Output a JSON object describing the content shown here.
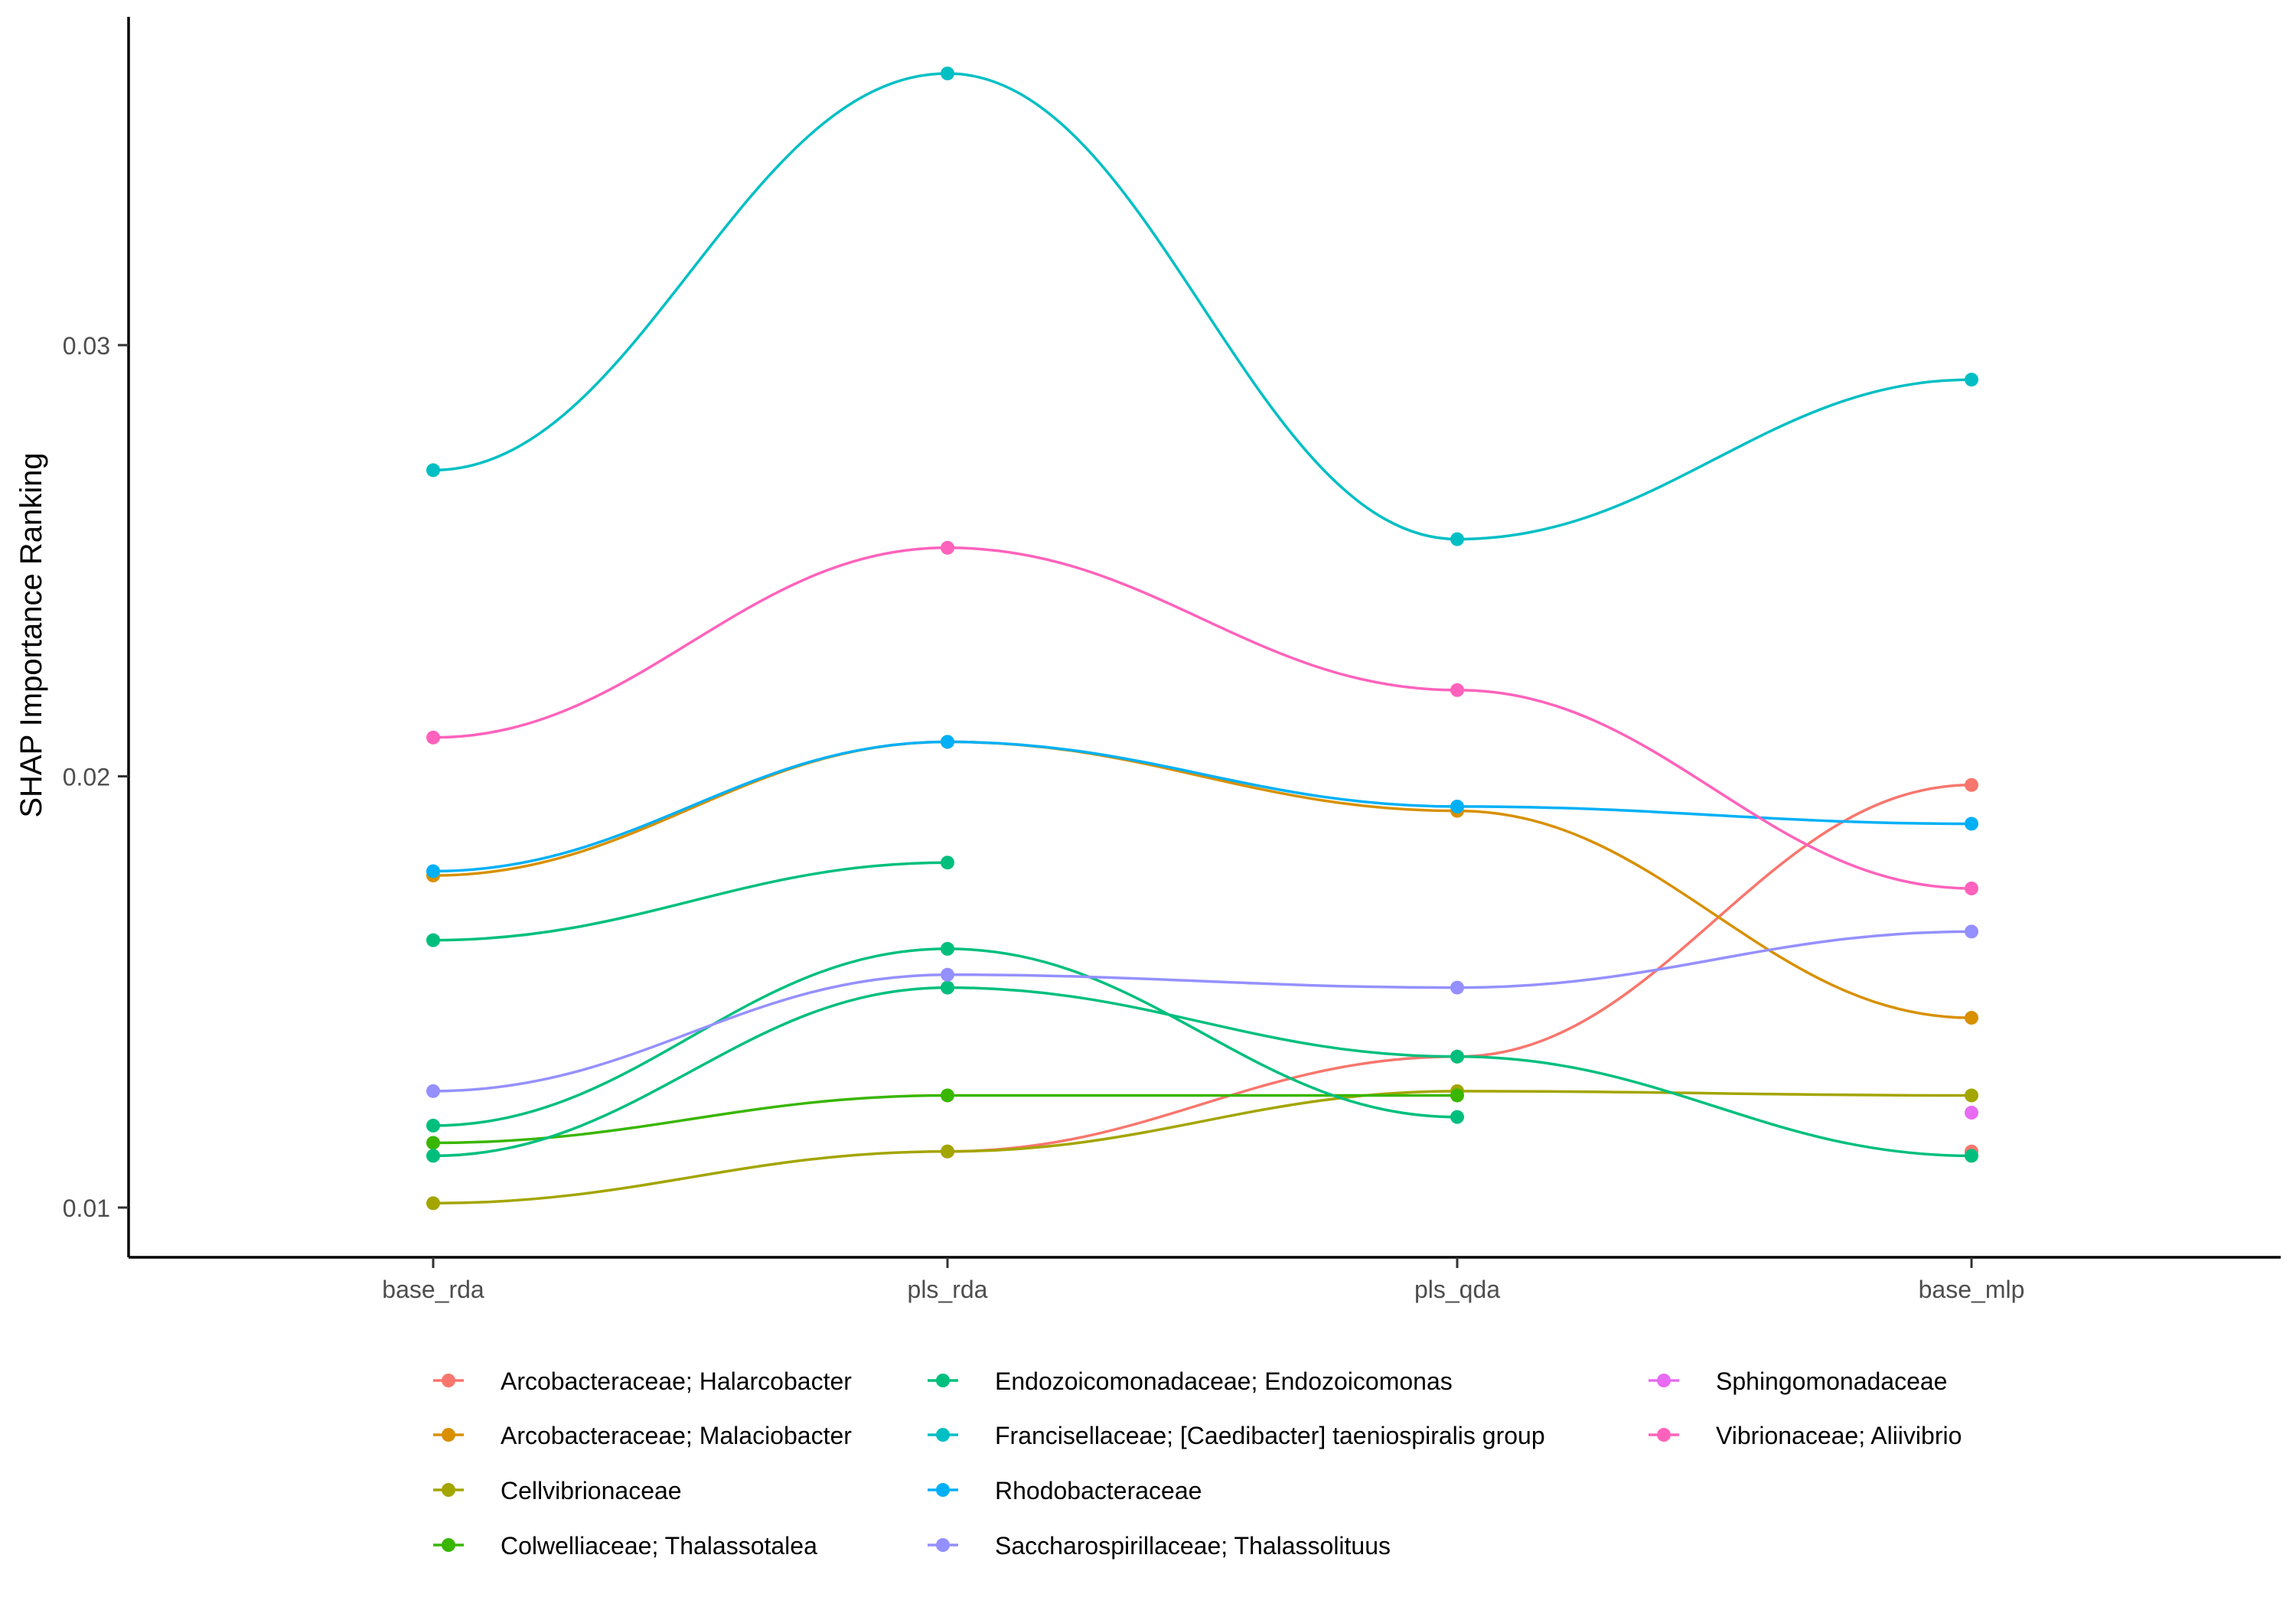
{
  "chart_data": {
    "type": "line",
    "title": "",
    "xlabel": "",
    "ylabel": "SHAP Importance Ranking",
    "categories": [
      "base_rda",
      "pls_rda",
      "pls_qda",
      "base_mlp"
    ],
    "yticks": [
      0.01,
      0.02,
      0.03
    ],
    "ytick_labels": [
      "0.01",
      "0.02",
      "0.03"
    ],
    "ylim": [
      0.0088,
      0.0375
    ],
    "grid": false,
    "legend_position": "bottom",
    "series": [
      {
        "name": "Arcobacteraceae; Halarcobacter",
        "color": "#F8766D",
        "values": [
          null,
          0.0113,
          0.0135,
          0.0198
        ],
        "extra_points": [
          {
            "x": "base_mlp",
            "y": 0.0113
          }
        ]
      },
      {
        "name": "Arcobacteraceae; Malaciobacter",
        "color": "#D89000",
        "values": [
          0.0177,
          0.0208,
          0.0192,
          0.0144
        ]
      },
      {
        "name": "Cellvibrionaceae",
        "color": "#A3A500",
        "values": [
          0.0101,
          0.0113,
          0.0127,
          0.0126
        ]
      },
      {
        "name": "Colwelliaceae; Thalassotalea",
        "color": "#39B600",
        "values": [
          0.0115,
          0.0126,
          0.0126,
          null
        ]
      },
      {
        "name": "Endozoicomonadaceae; Endozoicomonas",
        "color": "#00BF7D",
        "values": [
          0.0162,
          0.018,
          null,
          null
        ]
      },
      {
        "name": "Endozoicomonadaceae; Endozoicomonas",
        "color": "#00BF7D",
        "values": [
          0.0119,
          0.016,
          0.0121,
          null
        ]
      },
      {
        "name": "Endozoicomonadaceae; Endozoicomonas",
        "color": "#00BF7D",
        "values": [
          0.0112,
          0.0151,
          0.0135,
          0.0112
        ]
      },
      {
        "name": "Francisellaceae; [Caedibacter] taeniospiralis group",
        "color": "#00BFC4",
        "values": [
          0.0271,
          0.0363,
          0.0255,
          0.0292
        ]
      },
      {
        "name": "Rhodobacteraceae",
        "color": "#00B0F6",
        "values": [
          0.0178,
          0.0208,
          0.0193,
          0.0189
        ]
      },
      {
        "name": "Saccharospirillaceae; Thalassolituus",
        "color": "#9590FF",
        "values": [
          0.0127,
          0.0154,
          0.0151,
          0.0164
        ]
      },
      {
        "name": "Sphingomonadaceae",
        "color": "#E76BF3",
        "values": [
          null,
          null,
          null,
          0.0122
        ]
      },
      {
        "name": "Vibrionaceae; Aliivibrio",
        "color": "#FF62BC",
        "values": [
          0.0209,
          0.0253,
          0.022,
          0.0174
        ]
      }
    ],
    "legend": [
      {
        "name": "Arcobacteraceae; Halarcobacter",
        "color": "#F8766D"
      },
      {
        "name": "Arcobacteraceae; Malaciobacter",
        "color": "#D89000"
      },
      {
        "name": "Cellvibrionaceae",
        "color": "#A3A500"
      },
      {
        "name": "Colwelliaceae; Thalassotalea",
        "color": "#39B600"
      },
      {
        "name": "Endozoicomonadaceae; Endozoicomonas",
        "color": "#00BF7D"
      },
      {
        "name": "Francisellaceae; [Caedibacter] taeniospiralis group",
        "color": "#00BFC4"
      },
      {
        "name": "Rhodobacteraceae",
        "color": "#00B0F6"
      },
      {
        "name": "Saccharospirillaceae; Thalassolituus",
        "color": "#9590FF"
      },
      {
        "name": "Sphingomonadaceae",
        "color": "#E76BF3"
      },
      {
        "name": "Vibrionaceae; Aliivibrio",
        "color": "#FF62BC"
      }
    ]
  }
}
